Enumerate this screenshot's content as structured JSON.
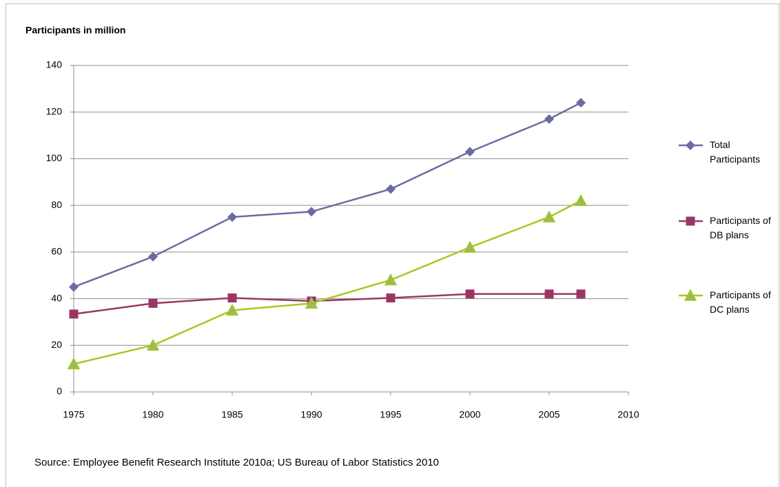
{
  "chart_data": {
    "type": "line",
    "title": "Participants in million",
    "source": "Source: Employee Benefit Research Institute 2010a; US Bureau of Labor Statistics 2010",
    "x": [
      1975,
      1980,
      1985,
      1990,
      1995,
      2000,
      2005,
      2007
    ],
    "xlim": [
      1975,
      2010
    ],
    "xticks": [
      1975,
      1980,
      1985,
      1990,
      1995,
      2000,
      2005,
      2010
    ],
    "ylim": [
      0,
      140
    ],
    "yticks": [
      0,
      20,
      40,
      60,
      80,
      100,
      120,
      140
    ],
    "grid": true,
    "legend": "right",
    "series": [
      {
        "name": "Total Participants",
        "color": "#6b6ba3",
        "marker": "diamond",
        "values": [
          45,
          58,
          75,
          77.3,
          87,
          103,
          117,
          124
        ]
      },
      {
        "name": "Participants of DB plans",
        "color": "#9b3566",
        "marker": "square",
        "values": [
          33.4,
          38,
          40.3,
          39,
          40.3,
          42,
          42,
          42
        ]
      },
      {
        "name": "Participants of DC plans",
        "color": "#a6c81e",
        "marker": "triangle",
        "values": [
          12,
          20,
          35,
          38,
          48,
          62,
          75,
          82
        ]
      }
    ]
  }
}
